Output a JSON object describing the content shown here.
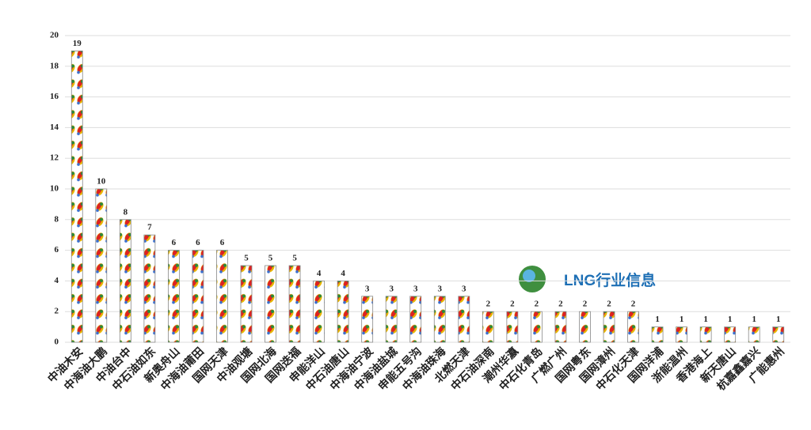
{
  "chart_data": {
    "type": "bar",
    "categories": [
      "中油木安",
      "中海油大鹏",
      "中油台中",
      "中石油如东",
      "新奥舟山",
      "中海油莆田",
      "国网天津",
      "中油观塘",
      "国网北海",
      "国网迭福",
      "申能洋山",
      "中石油唐山",
      "中海油宁波",
      "中海油盐城",
      "申能五号沟",
      "中海油珠海",
      "北燃天津",
      "中石油深南",
      "潮州华瀛",
      "中石化青岛",
      "广燃广州",
      "国网粤东",
      "国网漳州",
      "中石化天津",
      "国网洋浦",
      "浙能温州",
      "香港海上",
      "新天唐山",
      "杭嘉鑫嘉兴",
      "广能惠州"
    ],
    "values": [
      19,
      10,
      8,
      7,
      6,
      6,
      6,
      5,
      5,
      5,
      4,
      4,
      3,
      3,
      3,
      3,
      3,
      2,
      2,
      2,
      2,
      2,
      2,
      2,
      1,
      1,
      1,
      1,
      1,
      1
    ],
    "ylim": [
      0,
      20
    ],
    "yticks": [
      0,
      2,
      4,
      6,
      8,
      10,
      12,
      14,
      16,
      18,
      20
    ],
    "grid": true,
    "watermark": "LNG行业信息"
  }
}
